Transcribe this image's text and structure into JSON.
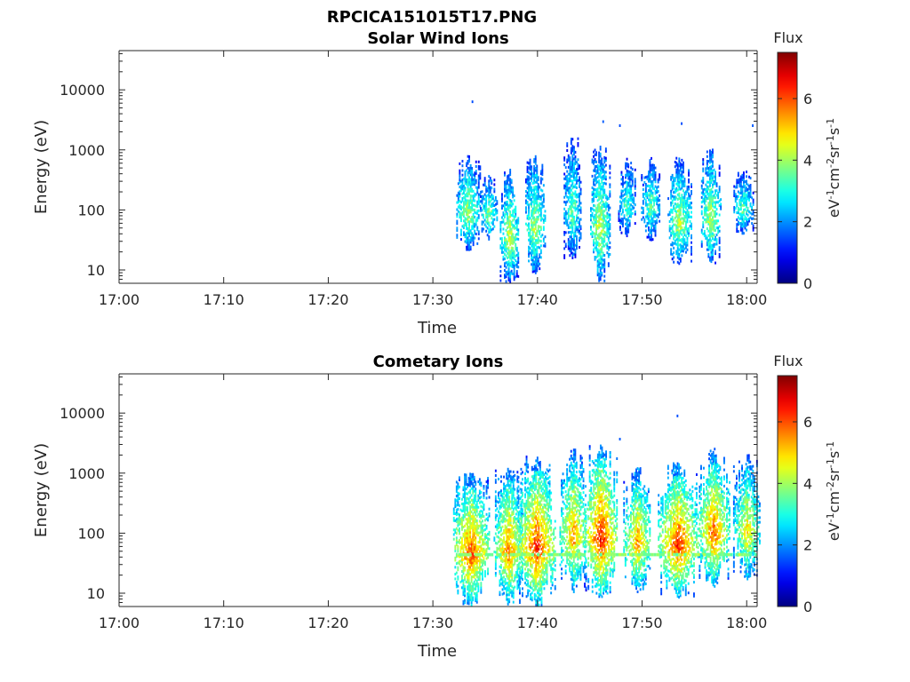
{
  "figure": {
    "file_title": "RPCICA151015T17.PNG"
  },
  "chart_data": [
    {
      "type": "heatmap",
      "title": "Solar Wind Ions",
      "xlabel": "Time",
      "ylabel": "Energy (eV)",
      "x_ticks": [
        "17:00",
        "17:10",
        "17:20",
        "17:30",
        "17:40",
        "17:50",
        "18:00"
      ],
      "x_range_minutes": [
        0,
        61
      ],
      "y_scale": "log",
      "y_ticks": [
        "10",
        "100",
        "1000",
        "10000"
      ],
      "y_range": [
        6,
        45000
      ],
      "colorbar": {
        "title": "Flux",
        "label": "eV-1cm-2sr-1s-1",
        "ticks": [
          "0",
          "2",
          "4",
          "6"
        ],
        "range": [
          0,
          7.5
        ],
        "colormap": "jet"
      },
      "bursts": [
        {
          "t": 33.3,
          "w": 1.2,
          "emin": 20,
          "emax": 800,
          "peak": 4.2
        },
        {
          "t": 35.3,
          "w": 0.8,
          "emin": 30,
          "emax": 350,
          "peak": 4.0
        },
        {
          "t": 37.3,
          "w": 0.9,
          "emin": 6,
          "emax": 450,
          "peak": 4.6
        },
        {
          "t": 39.7,
          "w": 1.0,
          "emin": 8,
          "emax": 800,
          "peak": 4.3
        },
        {
          "t": 43.3,
          "w": 0.8,
          "emin": 15,
          "emax": 1600,
          "peak": 3.8
        },
        {
          "t": 45.9,
          "w": 1.0,
          "emin": 6,
          "emax": 1200,
          "peak": 4.5
        },
        {
          "t": 48.5,
          "w": 0.8,
          "emin": 35,
          "emax": 700,
          "peak": 3.5
        },
        {
          "t": 50.8,
          "w": 0.9,
          "emin": 30,
          "emax": 700,
          "peak": 3.8
        },
        {
          "t": 53.5,
          "w": 1.2,
          "emin": 12,
          "emax": 700,
          "peak": 4.4
        },
        {
          "t": 56.5,
          "w": 1.0,
          "emin": 12,
          "emax": 1000,
          "peak": 4.4
        },
        {
          "t": 59.6,
          "w": 1.0,
          "emin": 35,
          "emax": 450,
          "peak": 3.6
        }
      ],
      "isolated_points": [
        {
          "t": 33.7,
          "e": 6000,
          "v": 1.5
        },
        {
          "t": 46.2,
          "e": 2800,
          "v": 1.6
        },
        {
          "t": 47.8,
          "e": 2400,
          "v": 1.5
        },
        {
          "t": 53.7,
          "e": 2600,
          "v": 1.5
        },
        {
          "t": 60.5,
          "e": 2400,
          "v": 1.6
        }
      ]
    },
    {
      "type": "heatmap",
      "title": "Cometary Ions",
      "xlabel": "Time",
      "ylabel": "Energy (eV)",
      "x_ticks": [
        "17:00",
        "17:10",
        "17:20",
        "17:30",
        "17:40",
        "17:50",
        "18:00"
      ],
      "x_range_minutes": [
        0,
        61
      ],
      "y_scale": "log",
      "y_ticks": [
        "10",
        "100",
        "1000",
        "10000"
      ],
      "y_range": [
        6,
        45000
      ],
      "colorbar": {
        "title": "Flux",
        "label": "eV-1cm-2sr-1s-1",
        "ticks": [
          "0",
          "2",
          "4",
          "6"
        ],
        "range": [
          0,
          7.5
        ],
        "colormap": "jet"
      },
      "bursts": [
        {
          "t": 33.6,
          "w": 1.8,
          "emin": 6,
          "emax": 1000,
          "peak": 6.2
        },
        {
          "t": 37.2,
          "w": 1.4,
          "emin": 6,
          "emax": 1300,
          "peak": 5.8
        },
        {
          "t": 39.9,
          "w": 1.8,
          "emin": 6,
          "emax": 1800,
          "peak": 6.5
        },
        {
          "t": 43.4,
          "w": 1.3,
          "emin": 10,
          "emax": 2500,
          "peak": 5.6
        },
        {
          "t": 46.0,
          "w": 1.6,
          "emin": 8,
          "emax": 3000,
          "peak": 6.6
        },
        {
          "t": 49.5,
          "w": 1.3,
          "emin": 10,
          "emax": 1200,
          "peak": 5.6
        },
        {
          "t": 53.4,
          "w": 1.9,
          "emin": 8,
          "emax": 1500,
          "peak": 6.4
        },
        {
          "t": 56.8,
          "w": 1.5,
          "emin": 12,
          "emax": 2500,
          "peak": 6.0
        },
        {
          "t": 60.0,
          "w": 1.3,
          "emin": 15,
          "emax": 2000,
          "peak": 5.0
        }
      ],
      "band": {
        "e": 42,
        "t_start": 32.4,
        "t_end": 60.8,
        "v": 3.8
      },
      "isolated_points": [
        {
          "t": 53.3,
          "e": 8500,
          "v": 1.5
        },
        {
          "t": 47.8,
          "e": 3500,
          "v": 1.6
        }
      ]
    }
  ]
}
